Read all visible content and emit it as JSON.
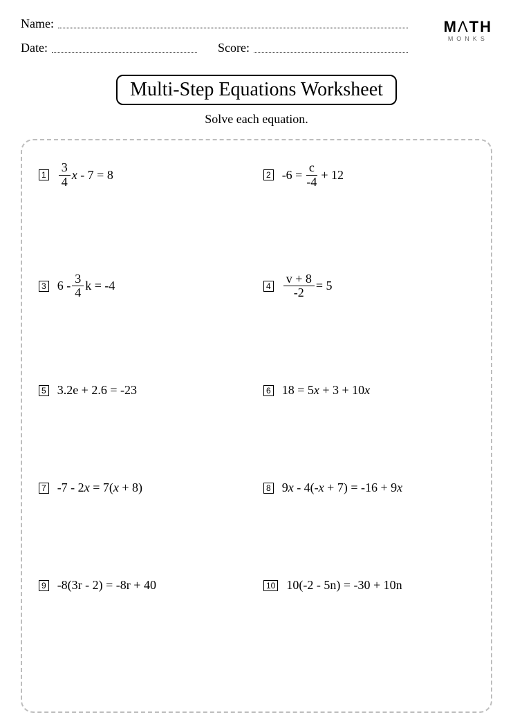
{
  "header": {
    "name_label": "Name:",
    "date_label": "Date:",
    "score_label": "Score:"
  },
  "logo": {
    "text_bold": "M",
    "text_thin": "Λ",
    "text_bold2": "TH",
    "sub": "MONKS"
  },
  "title": "Multi-Step Equations Worksheet",
  "subtitle": "Solve each equation.",
  "problems": [
    {
      "n": "1",
      "frac_num": "3",
      "frac_den": "4",
      "after": "x - 7 = 8",
      "type": "leadfrac"
    },
    {
      "n": "2",
      "before": "-6 = ",
      "frac_num": "c",
      "frac_den": "-4",
      "after": " + 12",
      "type": "midfrac"
    },
    {
      "n": "3",
      "before": "6 - ",
      "frac_num": "3",
      "frac_den": "4",
      "after": "k = -4",
      "type": "midfrac"
    },
    {
      "n": "4",
      "frac_num": "v + 8",
      "frac_den": "-2",
      "after": " = 5",
      "type": "leadfrac"
    },
    {
      "n": "5",
      "text": "3.2e + 2.6 = -23",
      "type": "plain"
    },
    {
      "n": "6",
      "text": "18 = 5x + 3 + 10x",
      "type": "italicx"
    },
    {
      "n": "7",
      "text": "-7 - 2x = 7(x + 8)",
      "type": "italicx"
    },
    {
      "n": "8",
      "text": "9x - 4(-x + 7) = -16 + 9x",
      "type": "italicx"
    },
    {
      "n": "9",
      "text": "-8(3r - 2) = -8r + 40",
      "type": "plain"
    },
    {
      "n": "10",
      "text": "10(-2 - 5n) = -30 + 10n",
      "type": "plain"
    }
  ],
  "colors": {
    "text": "#000000",
    "border_dash": "#bdbdbd",
    "bg": "#ffffff"
  }
}
